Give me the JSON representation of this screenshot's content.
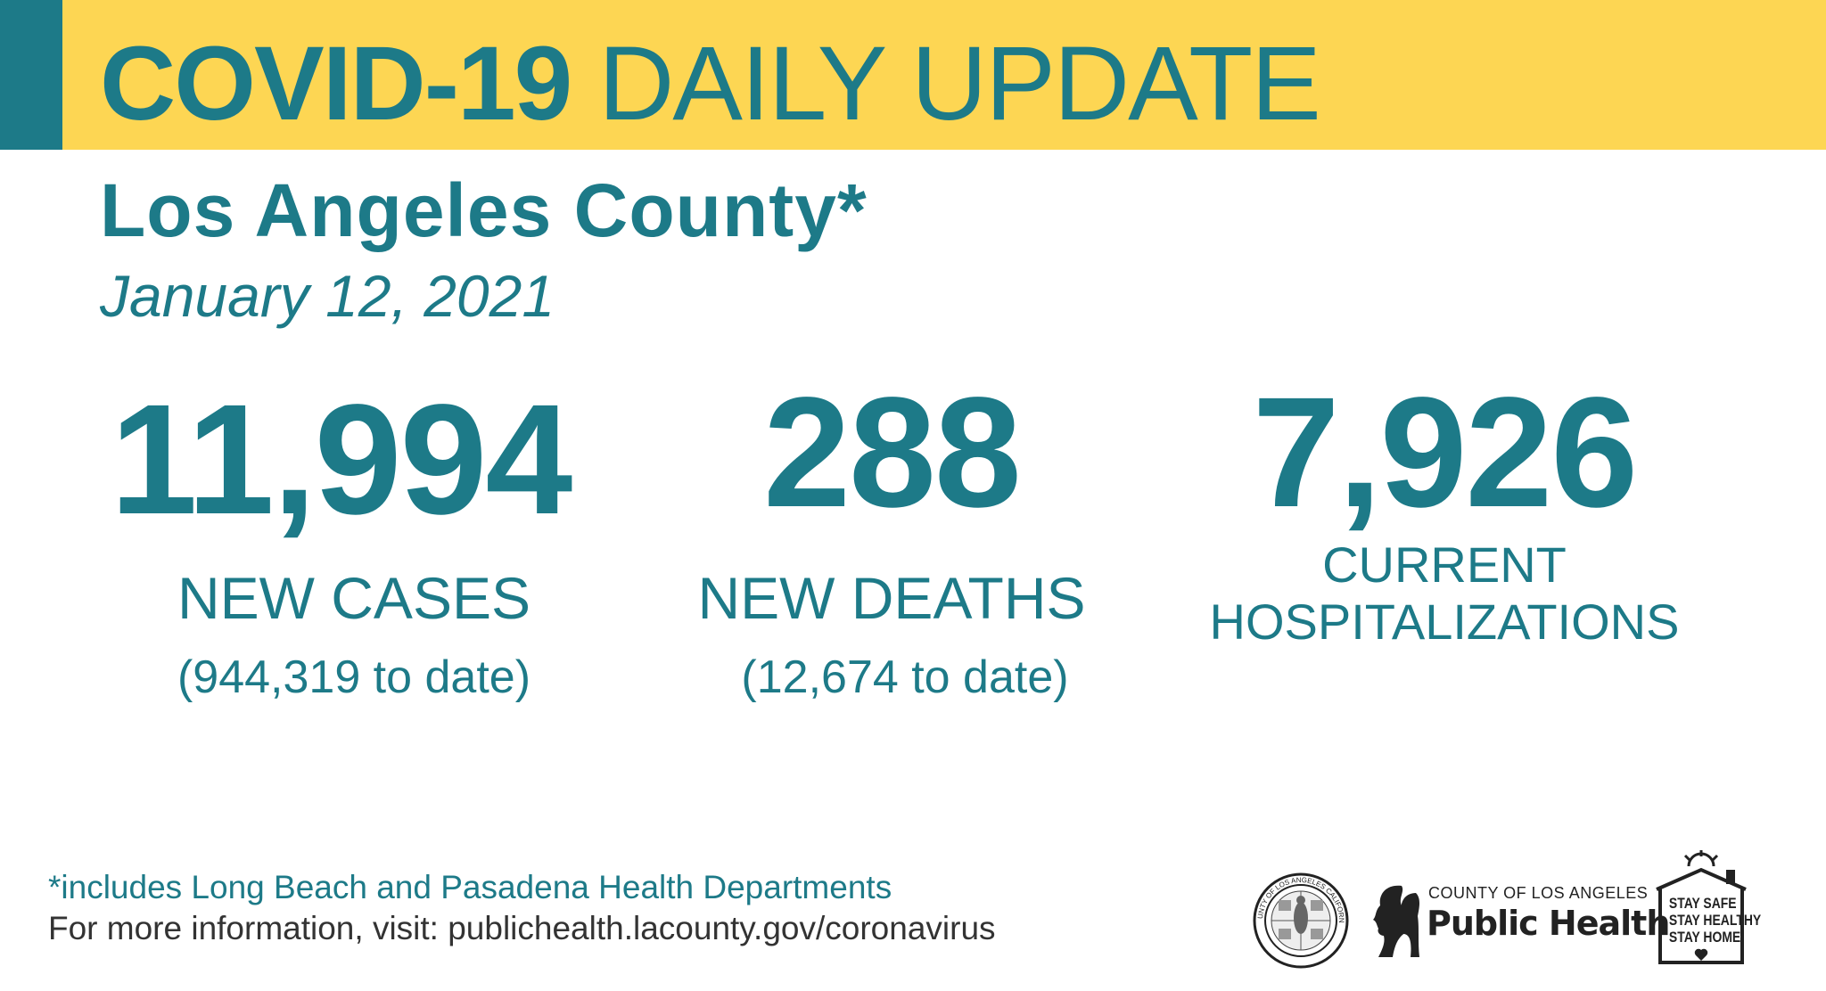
{
  "header": {
    "title_bold": "COVID-19",
    "title_light": "DAILY UPDATE",
    "subtitle": "Los Angeles County*",
    "date": "January 12, 2021"
  },
  "stats": {
    "new_cases": {
      "value": "11,994",
      "label": "NEW CASES",
      "to_date": "(944,319 to date)"
    },
    "new_deaths": {
      "value": "288",
      "label": "NEW DEATHS",
      "to_date": "(12,674 to date)"
    },
    "hospitalizations": {
      "value": "7,926",
      "label_line1": "CURRENT",
      "label_line2": "HOSPITALIZATIONS"
    }
  },
  "footer": {
    "footnote": "*includes Long Beach and Pasadena Health Departments",
    "more_info": "For more information, visit: publichealth.lacounty.gov/coronavirus"
  },
  "logos": {
    "county_seal": "COUNTY OF LOS ANGELES CALIFORNIA",
    "public_health_small": "COUNTY OF LOS ANGELES",
    "public_health_big": "Public Health",
    "stay_safe_line1": "STAY SAFE",
    "stay_safe_line2": "STAY HEALTHY",
    "stay_safe_line3": "STAY HOME"
  },
  "colors": {
    "banner": "#fdd653",
    "teal": "#1d7a88",
    "text_dark": "#333333"
  }
}
